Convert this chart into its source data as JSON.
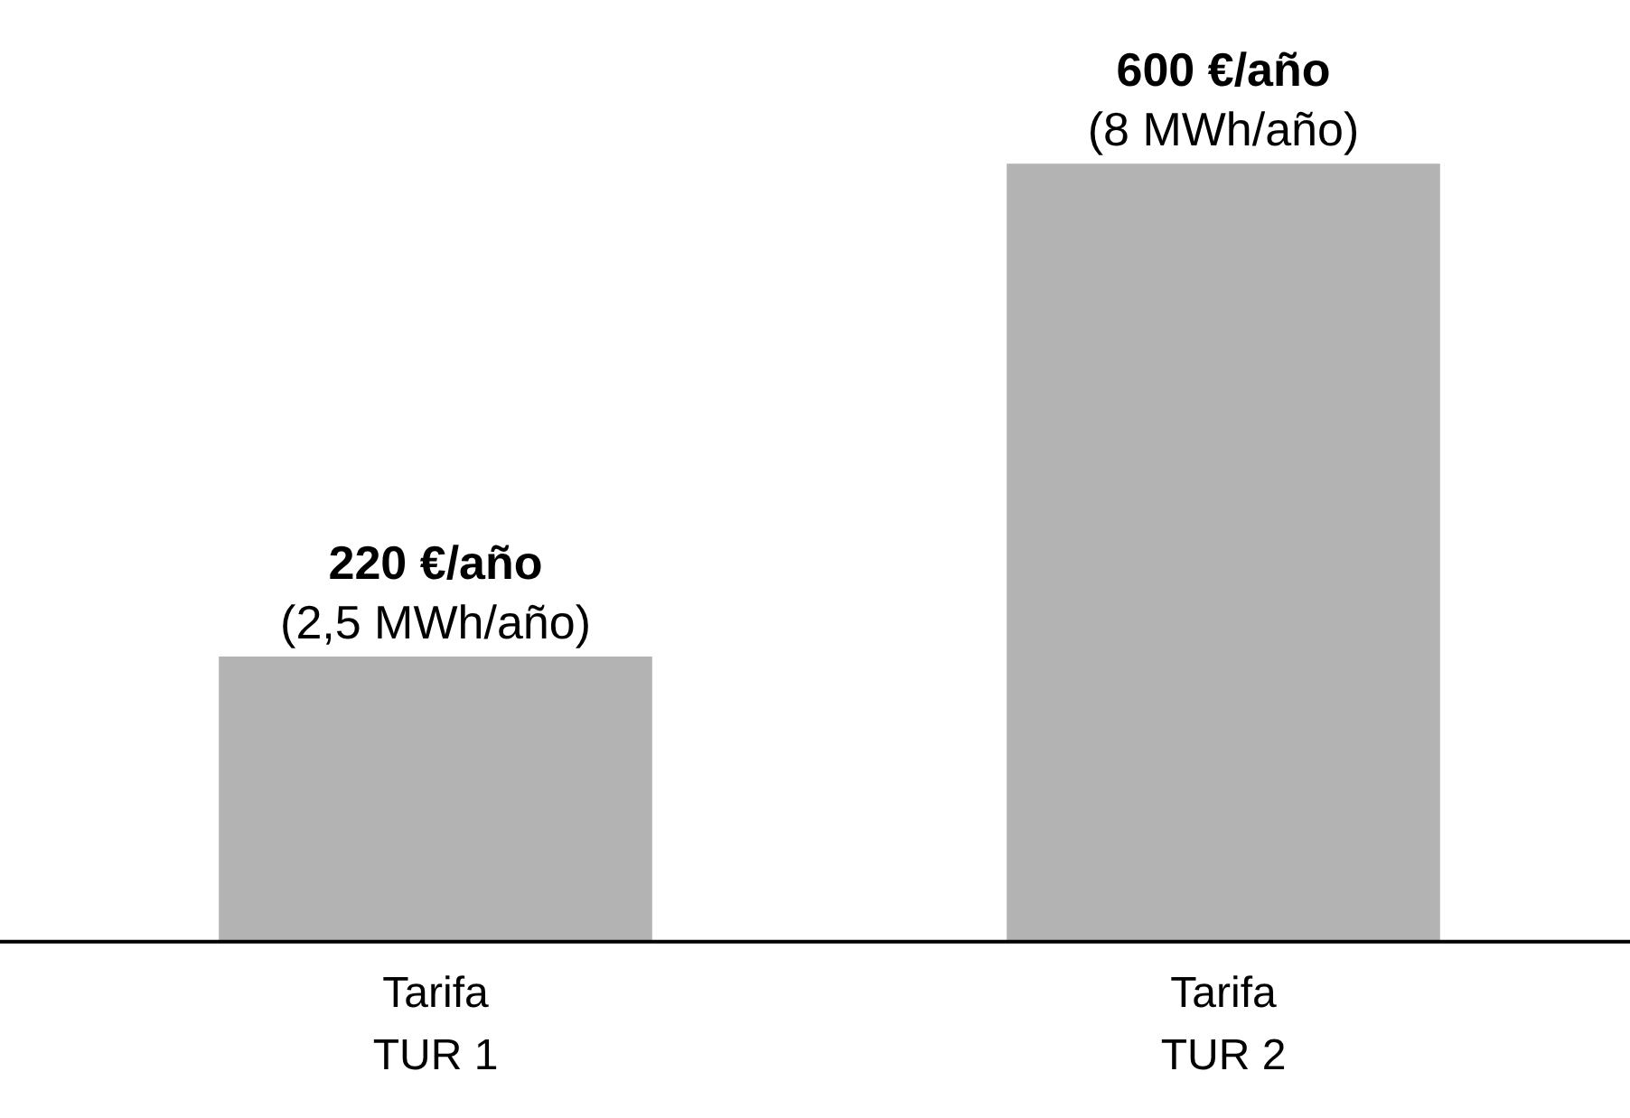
{
  "chart_data": {
    "type": "bar",
    "categories": [
      "Tarifa\nTUR 1",
      "Tarifa\nTUR 2"
    ],
    "values": [
      220,
      600
    ],
    "color": "#b3b3b3",
    "value_labels": [
      "220 €/año\n(2,5 MWh/año)",
      "600 €/año\n(8 MWh/año)"
    ],
    "grid": false,
    "legend": false
  }
}
